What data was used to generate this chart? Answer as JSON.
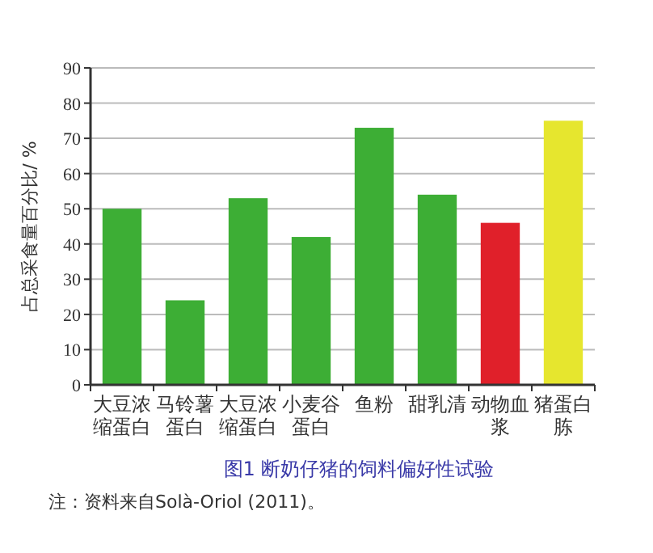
{
  "chart_data": {
    "type": "bar",
    "title": "图1 断奶仔猪的饲料偏好性试验",
    "ylabel": "占总采食量百分比/ %",
    "categories": [
      "大豆浓缩蛋白",
      "马铃薯蛋白",
      "大豆浓缩蛋白",
      "小麦谷蛋白",
      "鱼粉",
      "甜乳清",
      "动物血浆",
      "猪蛋白胨"
    ],
    "values": [
      50,
      24,
      53,
      42,
      73,
      54,
      46,
      75
    ],
    "colors": [
      "#3dae35",
      "#3dae35",
      "#3dae35",
      "#3dae35",
      "#3dae35",
      "#3dae35",
      "#e0202a",
      "#e6e62e"
    ],
    "ylim": [
      0,
      90
    ],
    "yticks": [
      0,
      10,
      20,
      30,
      40,
      50,
      60,
      70,
      80,
      90
    ],
    "grid": "y",
    "annotations": [
      "注：资料来自Solà-Oriol (2011)。"
    ]
  }
}
